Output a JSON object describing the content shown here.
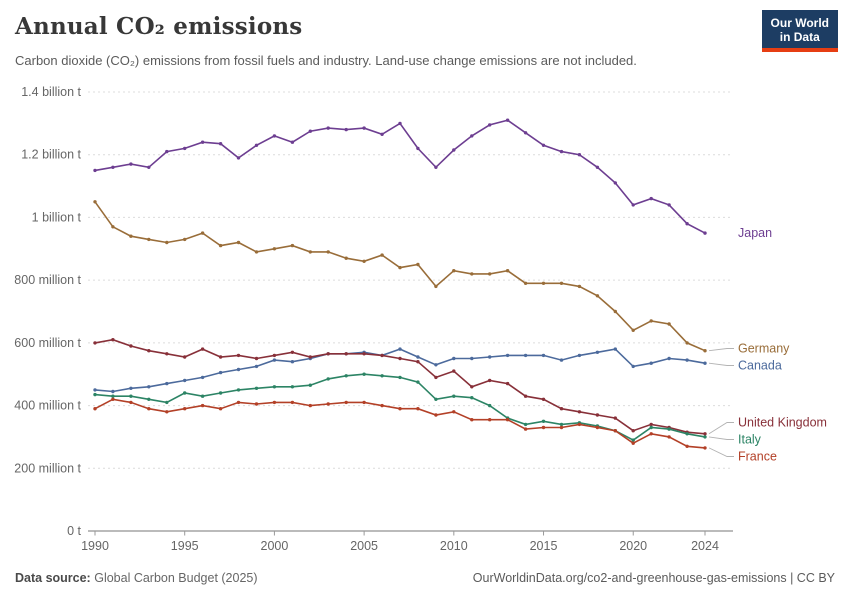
{
  "header": {
    "title": "Annual CO₂ emissions",
    "subtitle": "Carbon dioxide (CO₂) emissions from fossil fuels and industry. Land-use change emissions are not included.",
    "logo": {
      "line1": "Our World",
      "line2": "in Data",
      "bg": "#1d3d63",
      "accent": "#e63e13"
    }
  },
  "footer": {
    "source_label": "Data source:",
    "source": "Global Carbon Budget (2025)",
    "right": "OurWorldinData.org/co2-and-greenhouse-gas-emissions | CC BY"
  },
  "chart_data": {
    "type": "line",
    "title": "Annual CO₂ emissions",
    "xlabel": "",
    "ylabel": "",
    "values_unit": "million t",
    "ylim": [
      0,
      1400
    ],
    "grid": "dashed-horizontal",
    "legend_position": "right-of-lines",
    "x": [
      1990,
      1991,
      1992,
      1993,
      1994,
      1995,
      1996,
      1997,
      1998,
      1999,
      2000,
      2001,
      2002,
      2003,
      2004,
      2005,
      2006,
      2007,
      2008,
      2009,
      2010,
      2011,
      2012,
      2013,
      2014,
      2015,
      2016,
      2017,
      2018,
      2019,
      2020,
      2021,
      2022,
      2023,
      2024
    ],
    "x_ticks": [
      1990,
      1995,
      2000,
      2005,
      2010,
      2015,
      2020,
      2024
    ],
    "y_ticks": [
      {
        "value": 0,
        "label": "0 t"
      },
      {
        "value": 200,
        "label": "200 million t"
      },
      {
        "value": 400,
        "label": "400 million t"
      },
      {
        "value": 600,
        "label": "600 million t"
      },
      {
        "value": 800,
        "label": "800 million t"
      },
      {
        "value": 1000,
        "label": "1 billion t"
      },
      {
        "value": 1200,
        "label": "1.2 billion t"
      },
      {
        "value": 1400,
        "label": "1.4 billion t"
      }
    ],
    "series": [
      {
        "name": "Japan",
        "color": "#6d3e91",
        "values": [
          1150,
          1160,
          1170,
          1160,
          1210,
          1220,
          1240,
          1235,
          1190,
          1230,
          1260,
          1240,
          1275,
          1285,
          1280,
          1285,
          1265,
          1300,
          1220,
          1160,
          1215,
          1260,
          1295,
          1310,
          1270,
          1230,
          1210,
          1200,
          1160,
          1110,
          1040,
          1060,
          1040,
          980,
          950
        ]
      },
      {
        "name": "Germany",
        "color": "#996d39",
        "values": [
          1050,
          970,
          940,
          930,
          920,
          930,
          950,
          910,
          920,
          890,
          900,
          910,
          890,
          890,
          870,
          860,
          880,
          840,
          850,
          780,
          830,
          820,
          820,
          830,
          790,
          790,
          790,
          780,
          750,
          700,
          640,
          670,
          660,
          600,
          575
        ]
      },
      {
        "name": "Canada",
        "color": "#4c6a9c",
        "values": [
          450,
          445,
          455,
          460,
          470,
          480,
          490,
          505,
          515,
          525,
          545,
          540,
          550,
          565,
          565,
          570,
          560,
          580,
          555,
          530,
          550,
          550,
          555,
          560,
          560,
          560,
          545,
          560,
          570,
          580,
          525,
          535,
          550,
          545,
          535
        ]
      },
      {
        "name": "United Kingdom",
        "color": "#883039",
        "values": [
          600,
          610,
          590,
          575,
          565,
          555,
          580,
          555,
          560,
          550,
          560,
          570,
          555,
          565,
          565,
          565,
          560,
          550,
          540,
          490,
          510,
          460,
          480,
          470,
          430,
          420,
          390,
          380,
          370,
          360,
          320,
          340,
          330,
          315,
          310
        ]
      },
      {
        "name": "Italy",
        "color": "#2c8465",
        "values": [
          435,
          430,
          430,
          420,
          410,
          440,
          430,
          440,
          450,
          455,
          460,
          460,
          465,
          485,
          495,
          500,
          495,
          490,
          475,
          420,
          430,
          425,
          400,
          360,
          340,
          350,
          340,
          345,
          335,
          320,
          290,
          330,
          325,
          310,
          300
        ]
      },
      {
        "name": "France",
        "color": "#b34027",
        "values": [
          390,
          420,
          410,
          390,
          380,
          390,
          400,
          390,
          410,
          405,
          410,
          410,
          400,
          405,
          410,
          410,
          400,
          390,
          390,
          370,
          380,
          355,
          355,
          355,
          325,
          330,
          330,
          340,
          330,
          320,
          280,
          310,
          300,
          270,
          265
        ]
      }
    ]
  }
}
